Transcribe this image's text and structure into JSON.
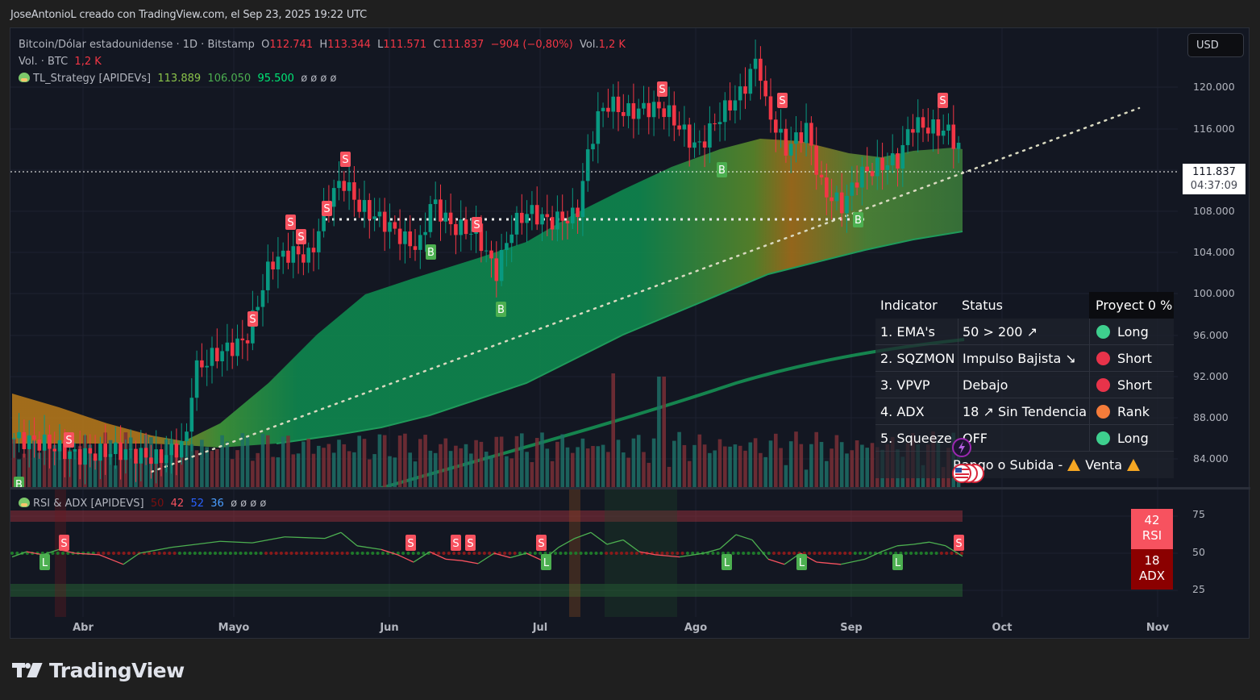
{
  "attribution": "JoseAntonioL creado con TradingView.com, el Sep 23, 2025 19:22 UTC",
  "symbol": {
    "name": "Bitcoin/Dólar estadounidense · 1D · Bitstamp",
    "open_label": "O",
    "open": "112.741",
    "high_label": "H",
    "high": "113.344",
    "low_label": "L",
    "low": "111.571",
    "close_label": "C",
    "close": "111.837",
    "change": "−904 (−0,80%)",
    "vol_label": "Vol.",
    "vol": "1,2 K"
  },
  "volume_legend": {
    "label": "Vol. · BTC",
    "value": "1,2 K"
  },
  "strategy_legend": {
    "name": "TL_Strategy [APIDEVs]",
    "v1": "113.889",
    "v2": "106.050",
    "v3": "95.500",
    "empties": "ø  ø  ø  ø"
  },
  "price_axis": {
    "currency_button": "USD",
    "ticks": [
      "120.000",
      "116.000",
      "108.000",
      "104.000",
      "100.000",
      "96.000",
      "92.000",
      "88.000",
      "84.000"
    ],
    "current_price": "111.837",
    "countdown": "04:37:09"
  },
  "time_axis": [
    "Abr",
    "Mayo",
    "Jun",
    "Jul",
    "Ago",
    "Sep",
    "Oct",
    "Nov"
  ],
  "signal_table": {
    "headers": {
      "indicator": "Indicator",
      "status": "Status",
      "projection": "Proyect 0 %"
    },
    "rows": [
      {
        "indicator": "1. EMA's",
        "status": "50 > 200 ↗",
        "signal": "Long",
        "color": "#3ecf8e"
      },
      {
        "indicator": "2. SQZMON",
        "status": "Impulso Bajista ↘",
        "signal": "Short",
        "color": "#e8334a"
      },
      {
        "indicator": "3. VPVP",
        "status": "Debajo",
        "signal": "Short",
        "color": "#e8334a"
      },
      {
        "indicator": "4. ADX",
        "status": "18 ↗ Sin Tendencia",
        "signal": "Rank",
        "color": "#f57c3a"
      },
      {
        "indicator": "5. Squeeze",
        "status": "OFF",
        "signal": "Long",
        "color": "#3ecf8e"
      }
    ],
    "footer": {
      "left": "Rango o Subida -",
      "right": "Venta"
    }
  },
  "oscillator": {
    "legend": {
      "name": "RSI & ADX [APIDEVS]",
      "v1": "50",
      "v2": "42",
      "v3": "52",
      "v4": "36",
      "empties": "ø  ø  ø  ø"
    },
    "ticks": [
      "75",
      "50",
      "25"
    ],
    "rsi_badge": {
      "value": "42",
      "label": "RSI"
    },
    "adx_badge": {
      "value": "18",
      "label": "ADX"
    }
  },
  "colors": {
    "up": "#089981",
    "down": "#f23645",
    "background": "#131722",
    "cloud_green": "#0e8a4f",
    "cloud_orange": "#c7831a",
    "sell_marker": "#f7525f",
    "buy_marker": "#4caf50"
  },
  "brand": "TradingView",
  "chart_data": {
    "type": "candlestick",
    "title": "Bitcoin/Dólar estadounidense · 1D · Bitstamp",
    "xlabel": "",
    "ylabel": "USD",
    "ylim": [
      82000,
      124000
    ],
    "x_ticks": [
      "Abr",
      "Mayo",
      "Jun",
      "Jul",
      "Ago",
      "Sep",
      "Oct",
      "Nov"
    ],
    "y_ticks": [
      84000,
      88000,
      92000,
      96000,
      100000,
      104000,
      108000,
      116000,
      120000
    ],
    "last": {
      "open": 112741,
      "high": 113344,
      "low": 111571,
      "close": 111837,
      "change": -904,
      "change_pct": -0.8
    },
    "close_series_approx": [
      {
        "month": "Mar-end",
        "close": 84000
      },
      {
        "month": "Abr-mid",
        "close": 84500
      },
      {
        "month": "Abr-end",
        "close": 94500
      },
      {
        "month": "May-mid",
        "close": 103500
      },
      {
        "month": "May-22",
        "close": 111500
      },
      {
        "month": "Jun-mid",
        "close": 106000
      },
      {
        "month": "Jun-end",
        "close": 107500
      },
      {
        "month": "Jul-14",
        "close": 120000
      },
      {
        "month": "Jul-end",
        "close": 118000
      },
      {
        "month": "Ago-14",
        "close": 123000
      },
      {
        "month": "Ago-end",
        "close": 108500
      },
      {
        "month": "Sep-mid",
        "close": 116500
      },
      {
        "month": "Sep-23",
        "close": 111837
      }
    ],
    "strategy_levels": {
      "ema_fast": 113889,
      "ema_mid": 106050,
      "ema_slow": 95500
    },
    "horizontal_levels": [
      111837,
      107000
    ],
    "trendline": {
      "from": [
        "Abr-10",
        82500
      ],
      "to": [
        "Oct-25",
        118000
      ],
      "style": "dotted"
    },
    "markers": {
      "sell": [
        "Abr-08",
        "Abr-28",
        "May-08",
        "May-09",
        "May-19",
        "May-22",
        "Jun-10",
        "Jul-24",
        "Ago-15",
        "Sep-18"
      ],
      "buy": [
        "Mar-27",
        "Jun-05",
        "Jun-22",
        "Ago-02",
        "Sep-01"
      ]
    },
    "oscillator": {
      "rsi": 42,
      "adx": 18,
      "levels": [
        25,
        50,
        75
      ]
    }
  }
}
